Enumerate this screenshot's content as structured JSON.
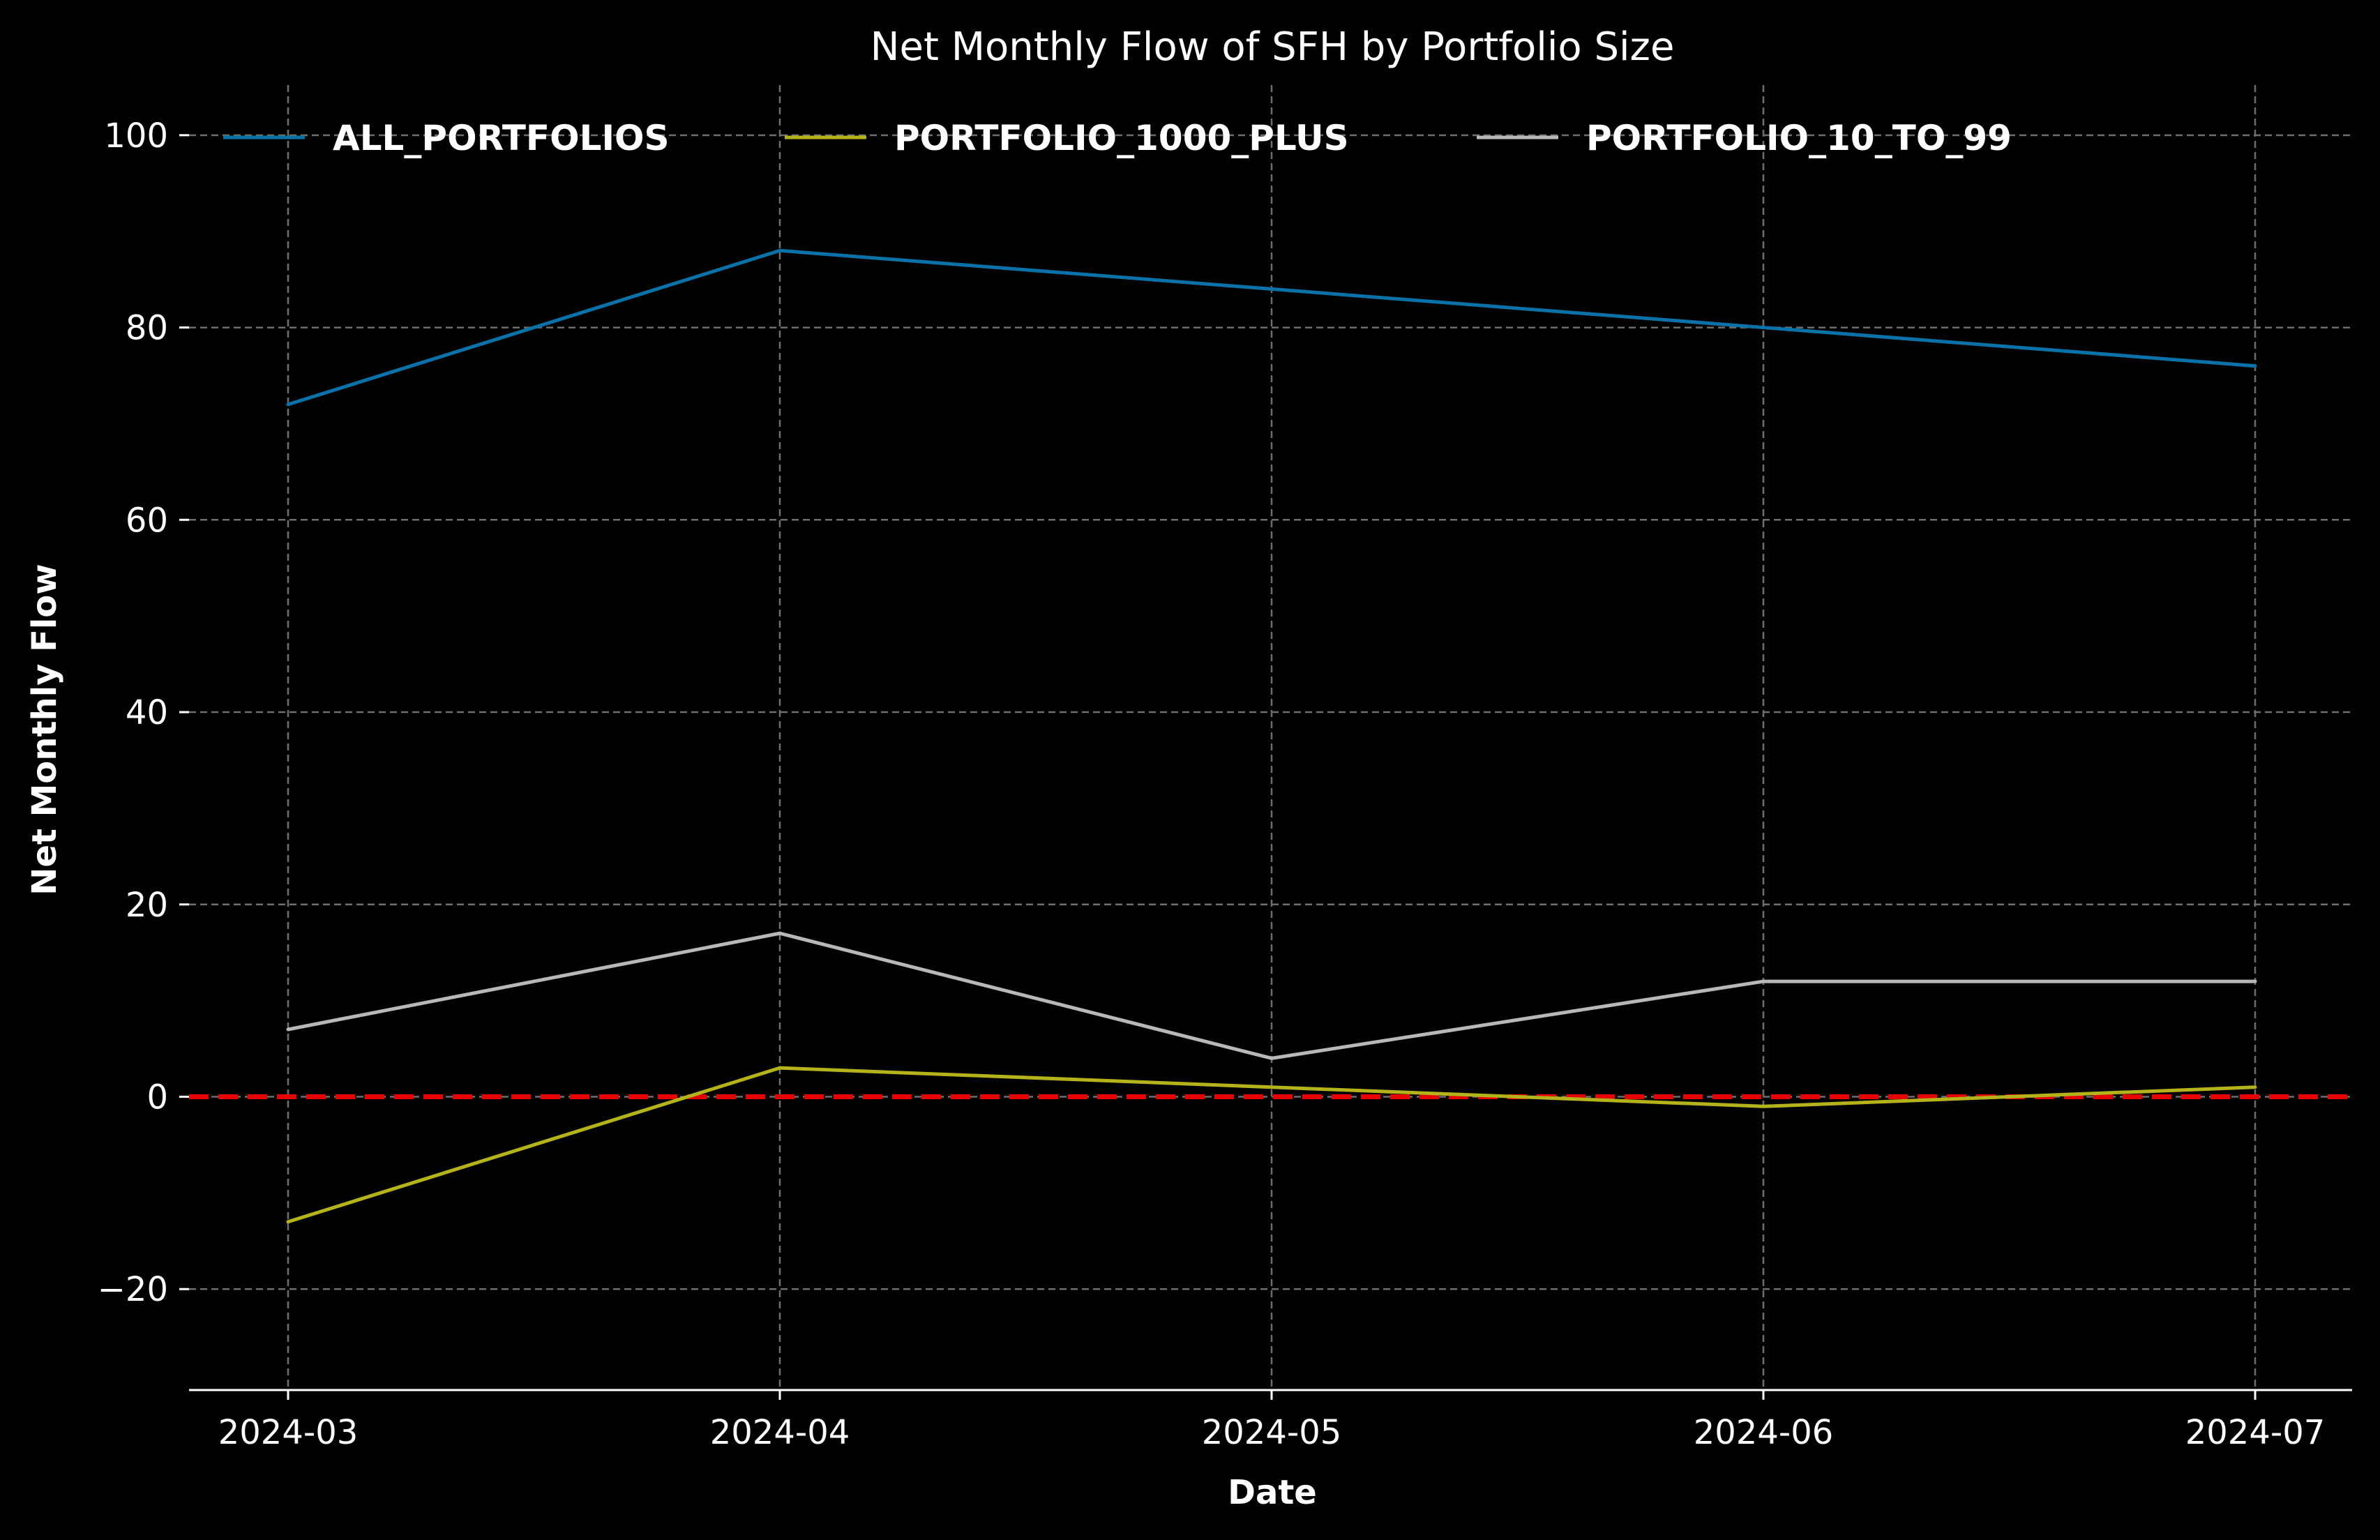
{
  "chart_data": {
    "type": "line",
    "title": "Net Monthly Flow of SFH by Portfolio Size",
    "xlabel": "Date",
    "ylabel": "Net Monthly Flow",
    "x": [
      "2024-03",
      "2024-04",
      "2024-05",
      "2024-06",
      "2024-07"
    ],
    "x_tick_labels": [
      "2024-03",
      "2024-04",
      "2024-05",
      "2024-06",
      "2024-07"
    ],
    "y_ticks": [
      -20,
      0,
      20,
      40,
      60,
      80,
      100
    ],
    "y_tick_labels": [
      "−20",
      "0",
      "20",
      "40",
      "60",
      "80",
      "100"
    ],
    "ylim": [
      -30.5,
      105.5
    ],
    "grid": true,
    "legend_position": "top, horizontal, three columns",
    "reference_line": {
      "y": 0,
      "style": "dashed",
      "color": "#e60000"
    },
    "background": "#000000",
    "series": [
      {
        "name": "ALL_PORTFOLIOS",
        "color": "#0a72a8",
        "values": [
          72,
          88,
          84,
          80,
          76
        ]
      },
      {
        "name": "PORTFOLIO_1000_PLUS",
        "color": "#b5b31b",
        "values": [
          -13,
          3,
          1,
          -1,
          1
        ]
      },
      {
        "name": "PORTFOLIO_10_TO_99",
        "color": "#b8b8b8",
        "values": [
          7,
          17,
          4,
          12,
          12
        ]
      }
    ]
  }
}
